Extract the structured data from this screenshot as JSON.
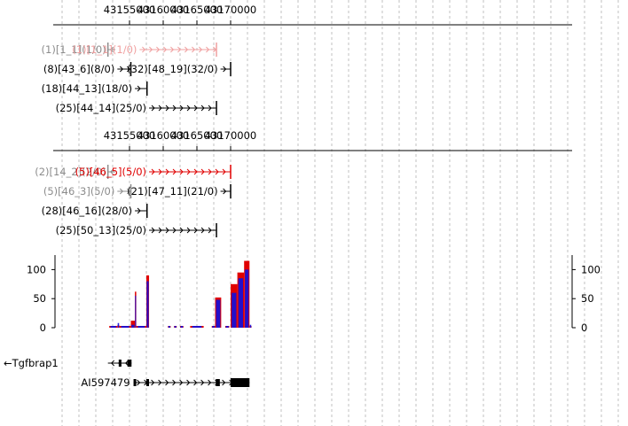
{
  "axis_ticks": [
    43155000,
    43160000,
    43165000,
    43170000
  ],
  "axis_tick_labels": [
    "43155000",
    "43160000",
    "43165000",
    "43170000"
  ],
  "colors": {
    "black": "#000000",
    "red": "#e00000",
    "pink": "#f0a0a0",
    "gray": "#8c8c8c",
    "blue": "#1010e0",
    "grid": "#c0c0c0"
  },
  "panel1_tracks": [
    {
      "label": "(1)[1_1](1/0)",
      "color": "gray",
      "start": 43151800,
      "end": 43152900,
      "direction": "left",
      "row": 0
    },
    {
      "label": "(1)[1_1](1/0)",
      "color": "pink",
      "start": 43156500,
      "end": 43167900,
      "direction": "right",
      "row": 0
    },
    {
      "label": "(8)[43_6](8/0)",
      "color": "black",
      "start": 43153200,
      "end": 43155200,
      "direction": "right",
      "row": 1
    },
    {
      "label": "(32)[48_19](32/0)",
      "color": "black",
      "start": 43168500,
      "end": 43170000,
      "direction": "right",
      "row": 1
    },
    {
      "label": "(18)[44_13](18/0)",
      "color": "black",
      "start": 43155800,
      "end": 43157600,
      "direction": "right",
      "row": 2
    },
    {
      "label": "(25)[44_14](25/0)",
      "color": "black",
      "start": 43157900,
      "end": 43167900,
      "direction": "right",
      "row": 3
    }
  ],
  "panel2_tracks": [
    {
      "label": "(2)[14_2](2/0)",
      "color": "gray",
      "start": 43151800,
      "end": 43152900,
      "direction": "left",
      "row": 0
    },
    {
      "label": "(5)[46_5](5/0)",
      "color": "red",
      "start": 43157900,
      "end": 43170000,
      "direction": "right",
      "row": 0
    },
    {
      "label": "(5)[46_3](5/0)",
      "color": "gray",
      "start": 43153200,
      "end": 43155200,
      "direction": "right",
      "row": 1
    },
    {
      "label": "(21)[47_11](21/0)",
      "color": "black",
      "start": 43168500,
      "end": 43170000,
      "direction": "right",
      "row": 1
    },
    {
      "label": "(28)[46_16](28/0)",
      "color": "black",
      "start": 43155800,
      "end": 43157600,
      "direction": "right",
      "row": 2
    },
    {
      "label": "(25)[50_13](25/0)",
      "color": "black",
      "start": 43157900,
      "end": 43167900,
      "direction": "right",
      "row": 3
    }
  ],
  "coverage": {
    "y_ticks": [
      0,
      50,
      100
    ],
    "y_tick_labels": [
      "0",
      "50",
      "100"
    ],
    "ylim": [
      0,
      125
    ],
    "peaks": [
      {
        "start": 43152000,
        "end": 43153200,
        "blue": 3,
        "red": 2
      },
      {
        "start": 43153200,
        "end": 43153500,
        "blue": 8,
        "red": 4
      },
      {
        "start": 43153500,
        "end": 43155200,
        "blue": 3,
        "red": 2
      },
      {
        "start": 43155200,
        "end": 43155800,
        "blue": 5,
        "red": 12
      },
      {
        "start": 43155800,
        "end": 43156000,
        "blue": 55,
        "red": 62
      },
      {
        "start": 43156000,
        "end": 43157500,
        "blue": 2,
        "red": 2
      },
      {
        "start": 43157500,
        "end": 43157900,
        "blue": 80,
        "red": 90
      },
      {
        "start": 43160700,
        "end": 43161100,
        "blue": 2,
        "red": 0
      },
      {
        "start": 43161600,
        "end": 43162000,
        "blue": 2,
        "red": 2
      },
      {
        "start": 43162500,
        "end": 43163000,
        "blue": 0,
        "red": 2
      },
      {
        "start": 43164000,
        "end": 43166000,
        "blue": 2,
        "red": 2
      },
      {
        "start": 43167200,
        "end": 43167700,
        "blue": 3,
        "red": 2
      },
      {
        "start": 43167700,
        "end": 43168600,
        "blue": 48,
        "red": 52
      },
      {
        "start": 43169200,
        "end": 43169800,
        "blue": 2,
        "red": 2
      },
      {
        "start": 43170000,
        "end": 43171000,
        "blue": 60,
        "red": 75
      },
      {
        "start": 43171000,
        "end": 43172000,
        "blue": 85,
        "red": 95
      },
      {
        "start": 43172000,
        "end": 43172800,
        "blue": 100,
        "red": 115
      },
      {
        "start": 43172800,
        "end": 43173100,
        "blue": 5,
        "red": 3
      }
    ]
  },
  "genes": [
    {
      "label": "Tgfbrap1",
      "direction": "left",
      "start": 43151800,
      "end": 43155300,
      "row": 0,
      "exons": [
        {
          "start": 43153400,
          "end": 43153600,
          "thick": false
        },
        {
          "start": 43154700,
          "end": 43155300,
          "thick": false
        }
      ]
    },
    {
      "label": "AI597479",
      "direction": "right",
      "start": 43155600,
      "end": 43172800,
      "row": 1,
      "exons": [
        {
          "start": 43155600,
          "end": 43155800,
          "thick": false
        },
        {
          "start": 43157500,
          "end": 43157800,
          "thick": false
        },
        {
          "start": 43167800,
          "end": 43168400,
          "thick": false
        },
        {
          "start": 43170000,
          "end": 43172800,
          "thick": false
        }
      ]
    }
  ]
}
